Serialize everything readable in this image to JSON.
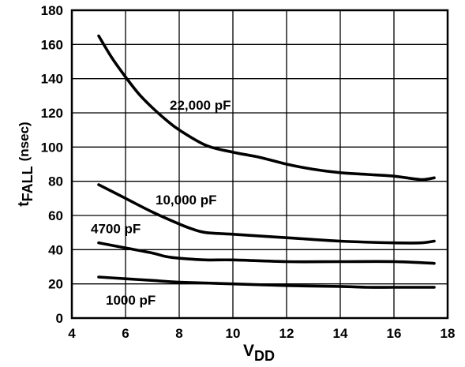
{
  "chart_data": {
    "type": "line",
    "title": "",
    "xlabel": "V",
    "xlabel_sub": "DD",
    "ylabel": "t",
    "ylabel_sub": "FALL",
    "ylabel_unit": "(nsec)",
    "xlim": [
      4,
      18
    ],
    "ylim": [
      0,
      180
    ],
    "xticks": [
      "4",
      "6",
      "8",
      "10",
      "12",
      "14",
      "16",
      "18"
    ],
    "yticks": [
      "0",
      "20",
      "40",
      "60",
      "80",
      "100",
      "120",
      "140",
      "160",
      "180"
    ],
    "grid": true,
    "series": [
      {
        "name": "22,000 pF",
        "x": [
          5.0,
          5.5,
          6.0,
          6.5,
          7.0,
          7.5,
          8.0,
          9.0,
          10.0,
          11.0,
          12.0,
          13.0,
          14.0,
          15.0,
          16.0,
          17.0,
          17.5
        ],
        "y": [
          165,
          152,
          141,
          131,
          123,
          116,
          110,
          101,
          97,
          94,
          90,
          87,
          85,
          84,
          83,
          81,
          82
        ]
      },
      {
        "name": "10,000 pF",
        "x": [
          5.0,
          6.0,
          7.0,
          8.0,
          8.5,
          9.0,
          10.0,
          12.0,
          14.0,
          16.0,
          17.0,
          17.5
        ],
        "y": [
          78,
          70,
          62,
          55,
          52,
          50,
          49,
          47,
          45,
          44,
          44,
          45
        ]
      },
      {
        "name": "4700 pF",
        "x": [
          5.0,
          6.0,
          7.0,
          7.5,
          8.0,
          9.0,
          10.0,
          12.0,
          14.0,
          16.0,
          17.5
        ],
        "y": [
          44,
          41,
          38,
          36,
          35,
          34,
          34,
          33,
          33,
          33,
          32
        ]
      },
      {
        "name": "1000 pF",
        "x": [
          5.0,
          6.0,
          7.0,
          8.0,
          10.0,
          12.0,
          14.0,
          15.0,
          16.0,
          17.5
        ],
        "y": [
          24,
          23,
          22,
          21,
          20,
          19,
          18.5,
          18,
          18,
          18
        ]
      }
    ]
  }
}
